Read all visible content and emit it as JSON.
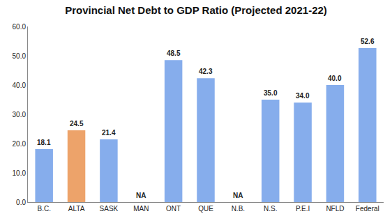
{
  "chart_data": {
    "type": "bar",
    "title": "Provincial Net Debt to GDP Ratio (Projected 2021-22)",
    "categories": [
      "B.C.",
      "ALTA",
      "SASK",
      "MAN",
      "ONT",
      "QUE",
      "N.B.",
      "N.S.",
      "P.E.I",
      "NFLD",
      "Federal"
    ],
    "values": [
      18.1,
      24.5,
      21.4,
      null,
      48.5,
      42.3,
      null,
      35.0,
      34.0,
      40.0,
      52.6
    ],
    "value_labels": [
      "18.1",
      "24.5",
      "21.4",
      "NA",
      "48.5",
      "42.3",
      "NA",
      "35.0",
      "34.0",
      "40.0",
      "52.6"
    ],
    "colors": [
      "#86adec",
      "#eda36a",
      "#86adec",
      "#86adec",
      "#86adec",
      "#86adec",
      "#86adec",
      "#86adec",
      "#86adec",
      "#86adec",
      "#86adec"
    ],
    "ylim": [
      0,
      60
    ],
    "yticks": [
      {
        "value": 0,
        "label": "0.0"
      },
      {
        "value": 10,
        "label": "10.0"
      },
      {
        "value": 20,
        "label": "20.0"
      },
      {
        "value": 30,
        "label": "30.0"
      },
      {
        "value": 40,
        "label": "40.0"
      },
      {
        "value": 50,
        "label": "50.0"
      },
      {
        "value": 60,
        "label": "60.0"
      }
    ],
    "data_labels": true,
    "grid": false
  }
}
